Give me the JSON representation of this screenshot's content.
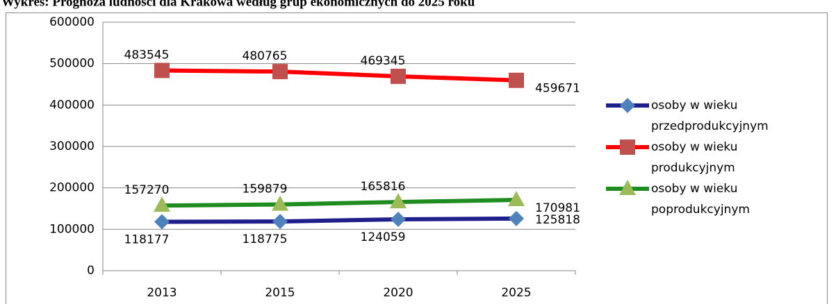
{
  "chart_data": {
    "type": "line",
    "title": "Wykres: Prognoza ludności dla Krakowa według grup ekonomicznych do 2025 roku",
    "categories": [
      "2013",
      "2015",
      "2020",
      "2025"
    ],
    "series": [
      {
        "name": [
          "osoby w wieku",
          "przedprodukcyjnym"
        ],
        "color": "#1f1f8c",
        "marker_color": "#4f81bd",
        "marker": "diamond",
        "values": [
          118177,
          118775,
          124059,
          125818
        ]
      },
      {
        "name": [
          "osoby w wieku",
          "produkcyjnym"
        ],
        "color": "#ff0000",
        "marker_color": "#c0504d",
        "marker": "square",
        "values": [
          483545,
          480765,
          469345,
          459671
        ]
      },
      {
        "name": [
          "osoby w wieku",
          "poprodukcyjnym"
        ],
        "color": "#1e8c1e",
        "marker_color": "#9bbb59",
        "marker": "triangle",
        "values": [
          157270,
          159879,
          165816,
          170981
        ]
      }
    ],
    "ylim": [
      0,
      600000
    ],
    "yticks": [
      0,
      100000,
      200000,
      300000,
      400000,
      500000,
      600000
    ],
    "grid": true,
    "legend": "right"
  }
}
